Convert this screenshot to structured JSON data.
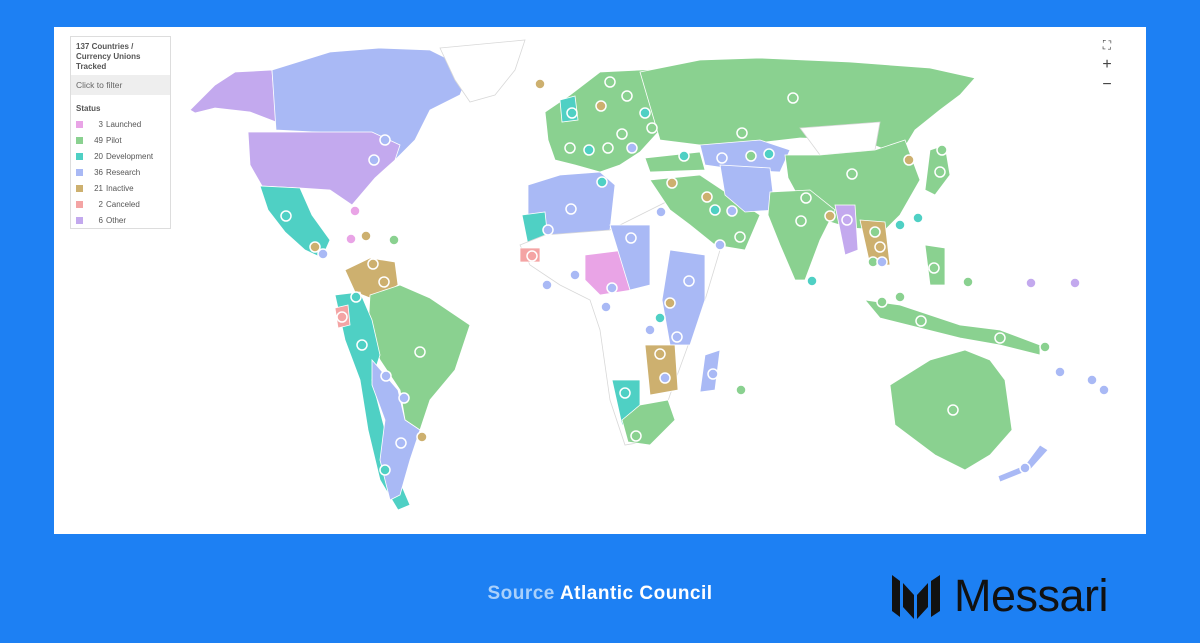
{
  "legend": {
    "title": "137 Countries / Currency Unions Tracked",
    "filter_label": "Click to filter",
    "status_label": "Status",
    "items": [
      {
        "count": "3",
        "label": "Launched",
        "color": "#e9a4e6"
      },
      {
        "count": "49",
        "label": "Pilot",
        "color": "#8ad190"
      },
      {
        "count": "20",
        "label": "Development",
        "color": "#4fd0c4"
      },
      {
        "count": "36",
        "label": "Research",
        "color": "#a9b9f5"
      },
      {
        "count": "21",
        "label": "Inactive",
        "color": "#cdb06f"
      },
      {
        "count": "2",
        "label": "Canceled",
        "color": "#f4a4a4"
      },
      {
        "count": "6",
        "label": "Other",
        "color": "#c3a9ee"
      }
    ]
  },
  "controls": {
    "fullscreen": "fullscreen-icon",
    "zoom_in": "+",
    "zoom_out": "−"
  },
  "footer": {
    "source_label": "Source",
    "source_value": "Atlantic Council",
    "brand": "Messari"
  },
  "colors": {
    "background": "#1d80f3",
    "no_data": "#ffffff"
  }
}
